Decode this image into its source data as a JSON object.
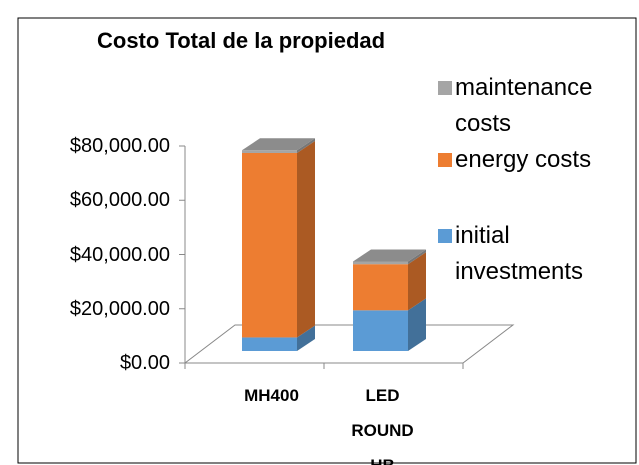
{
  "chart_data": {
    "type": "bar3d_stacked",
    "title": "Costo Total de la propiedad",
    "categories": [
      "MH400",
      "LED ROUND HB"
    ],
    "series": [
      {
        "name": "initial investments",
        "color": "#5b9bd5",
        "values": [
          5000,
          15000
        ]
      },
      {
        "name": "energy costs",
        "color": "#ed7d31",
        "values": [
          68000,
          17000
        ]
      },
      {
        "name": "maintenance costs",
        "color": "#a5a5a5",
        "values": [
          1000,
          1000
        ]
      }
    ],
    "ylim": [
      0,
      80000
    ],
    "yticks": [
      {
        "value": 0,
        "label": "$0.00"
      },
      {
        "value": 20000,
        "label": "$20,000.00"
      },
      {
        "value": 40000,
        "label": "$40,000.00"
      },
      {
        "value": 60000,
        "label": "$60,000.00"
      },
      {
        "value": 80000,
        "label": "$80,000.00"
      }
    ],
    "legend": "right"
  }
}
